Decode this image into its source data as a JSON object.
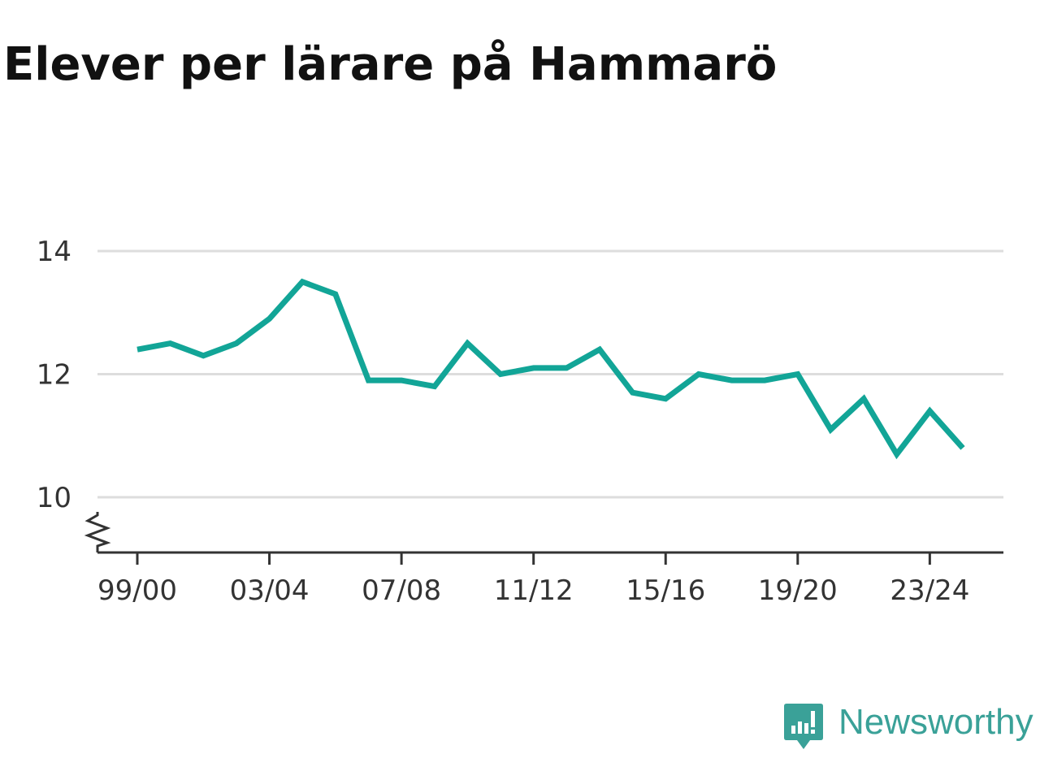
{
  "title": "Elever per lärare på Hammarö",
  "brand": {
    "name": "Newsworthy",
    "icon": "newsworthy-logo-icon",
    "color": "#3aa198"
  },
  "chart_data": {
    "type": "line",
    "title": "Elever per lärare på Hammarö",
    "xlabel": "",
    "ylabel": "",
    "categories": [
      "99/00",
      "00/01",
      "01/02",
      "02/03",
      "03/04",
      "04/05",
      "05/06",
      "06/07",
      "07/08",
      "08/09",
      "09/10",
      "10/11",
      "11/12",
      "12/13",
      "13/14",
      "14/15",
      "15/16",
      "16/17",
      "17/18",
      "18/19",
      "19/20",
      "20/21",
      "21/22",
      "22/23",
      "23/24",
      "24/25"
    ],
    "x_tick_labels": [
      "99/00",
      "03/04",
      "07/08",
      "11/12",
      "15/16",
      "19/20",
      "23/24"
    ],
    "y_ticks": [
      10,
      12,
      14
    ],
    "y_tick_labels": [
      "10",
      "12",
      "14"
    ],
    "ylim": [
      9.1,
      14
    ],
    "y_axis_break": true,
    "grid": true,
    "series": [
      {
        "color": "#12a597",
        "values": [
          12.4,
          12.5,
          12.3,
          12.5,
          12.9,
          13.5,
          13.3,
          11.9,
          11.9,
          11.8,
          12.5,
          12.0,
          12.1,
          12.1,
          12.4,
          11.7,
          11.6,
          12.0,
          11.9,
          11.9,
          12.0,
          11.1,
          11.6,
          10.7,
          11.4,
          10.8
        ]
      }
    ]
  }
}
